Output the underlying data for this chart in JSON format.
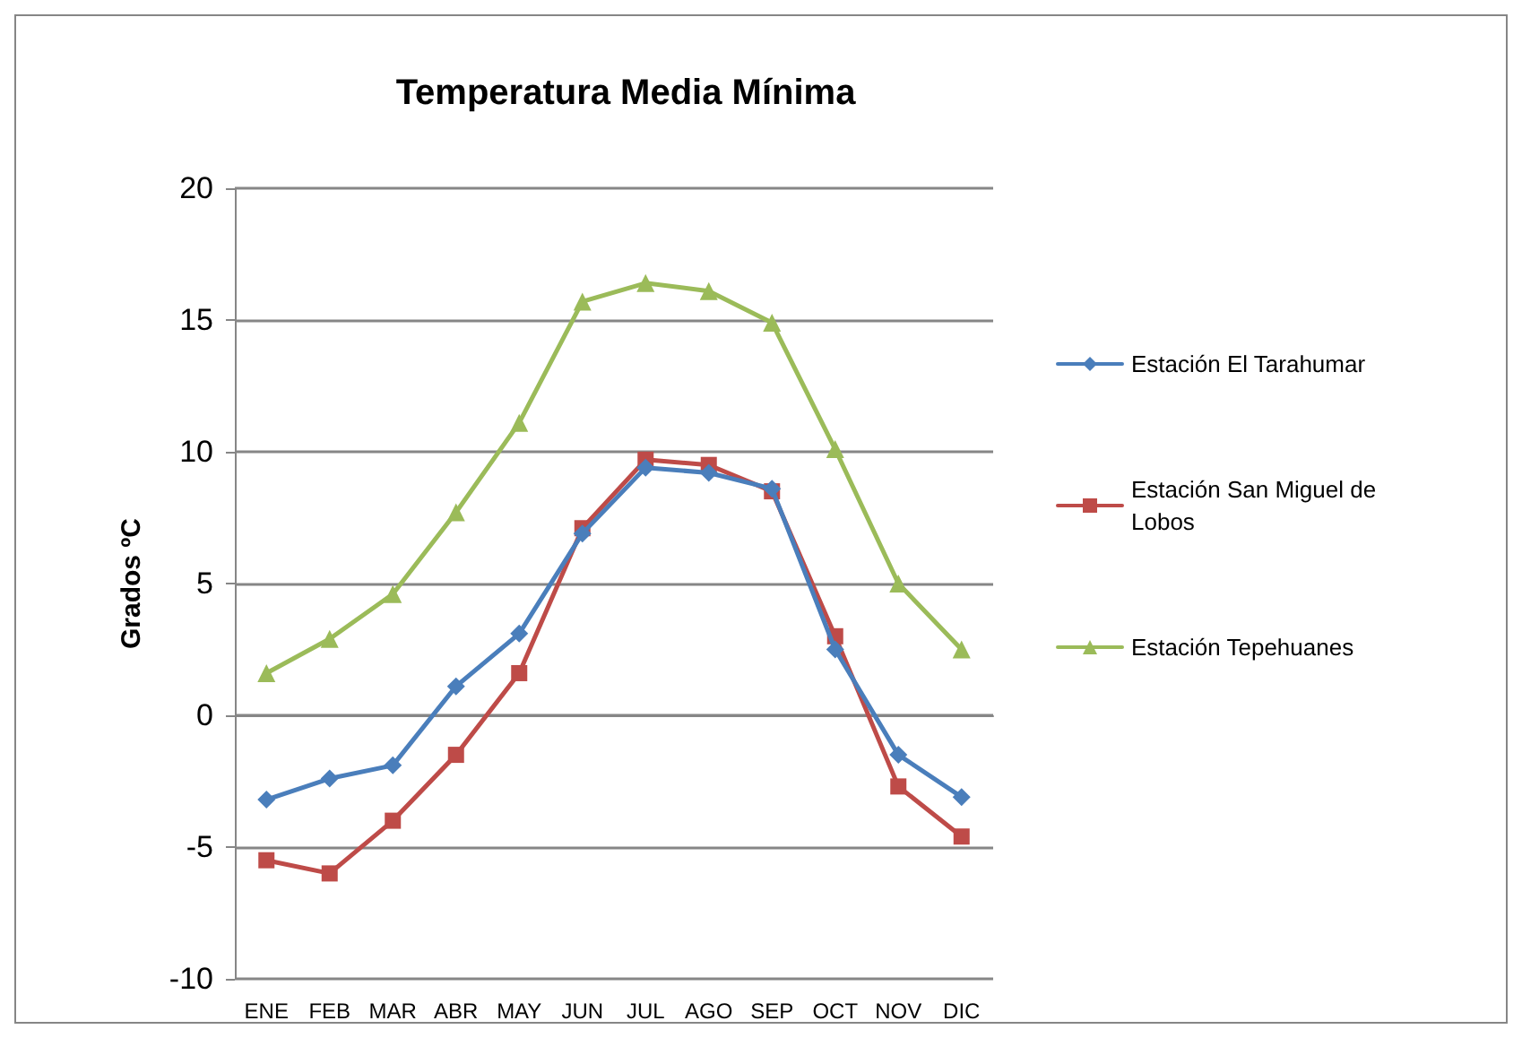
{
  "chart_data": {
    "type": "line",
    "title": "Temperatura Media Mínima",
    "ylabel": "Grados ºC",
    "categories": [
      "ENE",
      "FEB",
      "MAR",
      "ABR",
      "MAY",
      "JUN",
      "JUL",
      "AGO",
      "SEP",
      "OCT",
      "NOV",
      "DIC"
    ],
    "series": [
      {
        "name": "Estación El Tarahumar",
        "color": "#4a7ebb",
        "marker": "diamond",
        "values": [
          -3.2,
          -2.4,
          -1.9,
          1.1,
          3.1,
          6.9,
          9.4,
          9.2,
          8.6,
          2.5,
          -1.5,
          -3.1
        ]
      },
      {
        "name": "Estación San Miguel de Lobos",
        "color": "#be4b48",
        "marker": "square",
        "values": [
          -5.5,
          -6.0,
          -4.0,
          -1.5,
          1.6,
          7.1,
          9.7,
          9.5,
          8.5,
          3.0,
          -2.7,
          -4.6
        ]
      },
      {
        "name": "Estación Tepehuanes",
        "color": "#9bbb59",
        "marker": "triangle",
        "values": [
          1.6,
          2.9,
          4.6,
          7.7,
          11.1,
          15.7,
          16.4,
          16.1,
          14.9,
          10.1,
          5.0,
          2.5
        ]
      }
    ],
    "ylim": [
      -10,
      20
    ],
    "yticks": [
      -10,
      -5,
      0,
      5,
      10,
      15,
      20
    ],
    "grid": "y",
    "legend": "right",
    "line_style": "solid"
  }
}
